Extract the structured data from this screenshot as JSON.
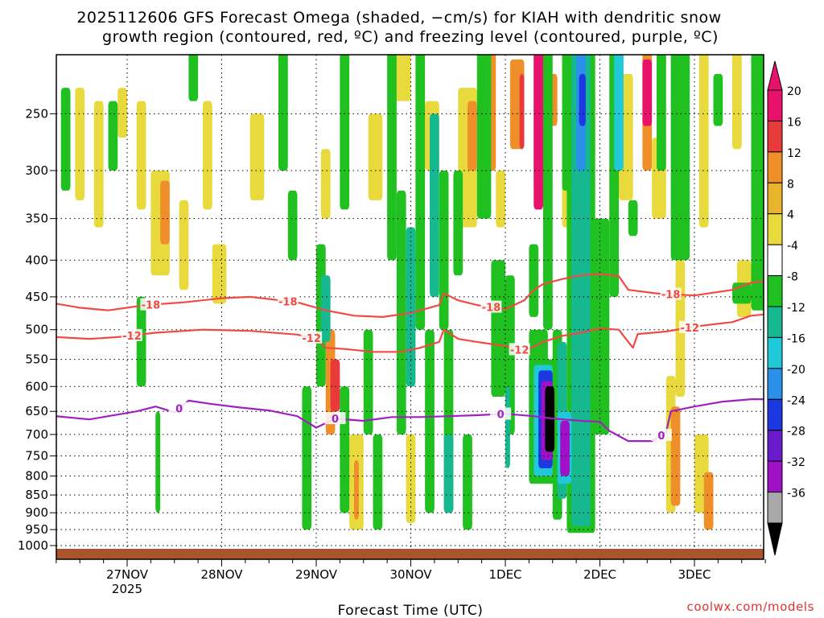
{
  "chart_data": {
    "type": "heatmap",
    "title_line1": "2025112606 GFS Forecast Omega (shaded, −cm/s) for KIAH with dendritic snow",
    "title_line2": "growth region (contoured, red, ºC) and freezing level (contoured, purple, ºC)",
    "xlabel": "Forecast Time (UTC)",
    "ylabel": "",
    "credit": "coolwx.com/models",
    "x_range_days": [
      -0.75,
      6.75
    ],
    "y_range_hpa": [
      1000,
      200
    ],
    "x_ticks": [
      {
        "day": 0,
        "label": "27NOV",
        "sublabel": "2025"
      },
      {
        "day": 1,
        "label": "28NOV",
        "sublabel": ""
      },
      {
        "day": 2,
        "label": "29NOV",
        "sublabel": ""
      },
      {
        "day": 3,
        "label": "30NOV",
        "sublabel": ""
      },
      {
        "day": 4,
        "label": "1DEC",
        "sublabel": ""
      },
      {
        "day": 5,
        "label": "2DEC",
        "sublabel": ""
      },
      {
        "day": 6,
        "label": "3DEC",
        "sublabel": ""
      }
    ],
    "y_ticks": [
      {
        "p": 250,
        "label": "250"
      },
      {
        "p": 300,
        "label": "300"
      },
      {
        "p": 350,
        "label": "350"
      },
      {
        "p": 400,
        "label": "400"
      },
      {
        "p": 450,
        "label": "450"
      },
      {
        "p": 500,
        "label": "500"
      },
      {
        "p": 550,
        "label": "550"
      },
      {
        "p": 600,
        "label": "600"
      },
      {
        "p": 650,
        "label": "650"
      },
      {
        "p": 700,
        "label": "700"
      },
      {
        "p": 750,
        "label": "750"
      },
      {
        "p": 800,
        "label": "800"
      },
      {
        "p": 850,
        "label": "850"
      },
      {
        "p": 900,
        "label": "900"
      },
      {
        "p": 950,
        "label": "950"
      },
      {
        "p": 1000,
        "label": "1000"
      }
    ],
    "colorbar": {
      "levels": [
        {
          "label": "20",
          "color": "#e8116c"
        },
        {
          "label": "16",
          "color": "#e83a3a"
        },
        {
          "label": "12",
          "color": "#ef8f2a"
        },
        {
          "label": "8",
          "color": "#e8b42e"
        },
        {
          "label": "4",
          "color": "#e8d93c"
        },
        {
          "label": "-4",
          "color": "#ffffff"
        },
        {
          "label": "-8",
          "color": "#20c020"
        },
        {
          "label": "-12",
          "color": "#16b890"
        },
        {
          "label": "-16",
          "color": "#20c8d8"
        },
        {
          "label": "-20",
          "color": "#2a90e8"
        },
        {
          "label": "-24",
          "color": "#1c38e0"
        },
        {
          "label": "-28",
          "color": "#6a1ccc"
        },
        {
          "label": "-32",
          "color": "#a010c8"
        },
        {
          "label": "-36",
          "color": "#a8a8a8"
        }
      ],
      "top_color": "#e8116c",
      "bottom_color": "#000000"
    },
    "contours": [
      {
        "name": "dgz-minus-18",
        "label": "-18",
        "color": "#f04a44",
        "label_days": [
          0.25,
          1.7,
          3.85,
          5.75
        ],
        "points": [
          [
            -0.75,
            460
          ],
          [
            -0.5,
            466
          ],
          [
            -0.2,
            470
          ],
          [
            0.2,
            462
          ],
          [
            0.6,
            458
          ],
          [
            1.0,
            452
          ],
          [
            1.3,
            450
          ],
          [
            1.8,
            458
          ],
          [
            2.1,
            470
          ],
          [
            2.4,
            478
          ],
          [
            2.7,
            480
          ],
          [
            3.0,
            474
          ],
          [
            3.3,
            462
          ],
          [
            3.35,
            445
          ],
          [
            3.5,
            455
          ],
          [
            3.7,
            462
          ],
          [
            4.0,
            468
          ],
          [
            4.2,
            455
          ],
          [
            4.3,
            440
          ],
          [
            4.4,
            432
          ],
          [
            4.6,
            425
          ],
          [
            4.8,
            420
          ],
          [
            5.0,
            418
          ],
          [
            5.2,
            421
          ],
          [
            5.3,
            440
          ],
          [
            5.6,
            445
          ],
          [
            6.0,
            448
          ],
          [
            6.4,
            440
          ],
          [
            6.6,
            430
          ],
          [
            6.75,
            428
          ]
        ]
      },
      {
        "name": "dgz-minus-12",
        "label": "-12",
        "color": "#f04a44",
        "label_days": [
          0.05,
          1.95,
          4.15,
          5.95
        ],
        "points": [
          [
            -0.75,
            512
          ],
          [
            -0.4,
            515
          ],
          [
            -0.1,
            512
          ],
          [
            0.3,
            505
          ],
          [
            0.8,
            500
          ],
          [
            1.3,
            502
          ],
          [
            1.8,
            508
          ],
          [
            2.0,
            515
          ],
          [
            2.1,
            530
          ],
          [
            2.3,
            532
          ],
          [
            2.6,
            537
          ],
          [
            2.9,
            537
          ],
          [
            3.1,
            530
          ],
          [
            3.3,
            520
          ],
          [
            3.35,
            500
          ],
          [
            3.5,
            515
          ],
          [
            3.7,
            520
          ],
          [
            4.0,
            527
          ],
          [
            4.2,
            535
          ],
          [
            4.3,
            528
          ],
          [
            4.4,
            520
          ],
          [
            4.6,
            510
          ],
          [
            4.8,
            505
          ],
          [
            5.0,
            498
          ],
          [
            5.2,
            500
          ],
          [
            5.3,
            520
          ],
          [
            5.35,
            530
          ],
          [
            5.4,
            507
          ],
          [
            5.7,
            503
          ],
          [
            6.0,
            495
          ],
          [
            6.4,
            488
          ],
          [
            6.6,
            478
          ],
          [
            6.75,
            476
          ]
        ]
      },
      {
        "name": "freezing-level",
        "label": "0",
        "color": "#a020c0",
        "label_days": [
          0.55,
          2.2,
          3.95,
          5.65
        ],
        "points": [
          [
            -0.75,
            660
          ],
          [
            -0.4,
            667
          ],
          [
            -0.2,
            660
          ],
          [
            0.1,
            650
          ],
          [
            0.3,
            640
          ],
          [
            0.5,
            652
          ],
          [
            0.65,
            628
          ],
          [
            0.9,
            635
          ],
          [
            1.2,
            642
          ],
          [
            1.5,
            648
          ],
          [
            1.8,
            660
          ],
          [
            2.0,
            685
          ],
          [
            2.2,
            665
          ],
          [
            2.5,
            670
          ],
          [
            2.8,
            662
          ],
          [
            3.1,
            662
          ],
          [
            3.4,
            660
          ],
          [
            3.7,
            658
          ],
          [
            4.0,
            655
          ],
          [
            4.3,
            660
          ],
          [
            4.5,
            665
          ],
          [
            4.8,
            670
          ],
          [
            5.0,
            672
          ],
          [
            5.1,
            692
          ],
          [
            5.3,
            715
          ],
          [
            5.55,
            715
          ],
          [
            5.7,
            695
          ],
          [
            5.75,
            650
          ],
          [
            6.0,
            640
          ],
          [
            6.3,
            630
          ],
          [
            6.6,
            625
          ],
          [
            6.75,
            625
          ]
        ]
      }
    ],
    "omega_note": "Shaded omega values in -cm/s; upward motion (positive) yellow/orange/red/magenta, downward motion (negative) green/teal/blue/purple/gray/black.",
    "omega_cells": [
      [
        -0.55,
        -0.45,
        230,
        330,
        6
      ],
      [
        -0.35,
        -0.25,
        240,
        360,
        6
      ],
      [
        -0.1,
        0.0,
        230,
        270,
        6
      ],
      [
        0.1,
        0.2,
        240,
        340,
        6
      ],
      [
        0.25,
        0.45,
        300,
        420,
        6
      ],
      [
        0.35,
        0.45,
        310,
        380,
        10
      ],
      [
        0.55,
        0.65,
        330,
        440,
        6
      ],
      [
        0.8,
        0.9,
        240,
        340,
        6
      ],
      [
        0.9,
        1.05,
        380,
        460,
        6
      ],
      [
        1.3,
        1.45,
        250,
        330,
        6
      ],
      [
        2.05,
        2.15,
        280,
        350,
        6
      ],
      [
        2.1,
        2.2,
        500,
        700,
        10
      ],
      [
        2.15,
        2.25,
        550,
        650,
        14
      ],
      [
        2.55,
        2.7,
        250,
        330,
        6
      ],
      [
        2.8,
        3.0,
        200,
        240,
        6
      ],
      [
        3.15,
        3.3,
        240,
        300,
        6
      ],
      [
        3.5,
        3.7,
        230,
        360,
        6
      ],
      [
        3.6,
        3.7,
        240,
        300,
        10
      ],
      [
        3.8,
        3.9,
        200,
        300,
        10
      ],
      [
        3.9,
        4.0,
        300,
        360,
        6
      ],
      [
        4.05,
        4.2,
        210,
        280,
        10
      ],
      [
        4.15,
        4.2,
        220,
        280,
        16
      ],
      [
        4.3,
        4.4,
        200,
        320,
        10
      ],
      [
        4.3,
        4.4,
        200,
        340,
        18
      ],
      [
        4.45,
        4.55,
        220,
        260,
        12
      ],
      [
        4.85,
        4.95,
        230,
        290,
        6
      ],
      [
        5.2,
        5.35,
        220,
        330,
        6
      ],
      [
        5.45,
        5.55,
        200,
        300,
        10
      ],
      [
        5.45,
        5.55,
        210,
        260,
        18
      ],
      [
        5.55,
        5.7,
        270,
        350,
        6
      ],
      [
        5.7,
        5.8,
        580,
        900,
        6
      ],
      [
        5.75,
        5.85,
        640,
        880,
        10
      ],
      [
        5.8,
        5.9,
        400,
        620,
        6
      ],
      [
        6.0,
        6.15,
        700,
        900,
        6
      ],
      [
        6.05,
        6.15,
        200,
        360,
        6
      ],
      [
        6.1,
        6.2,
        790,
        950,
        10
      ],
      [
        6.4,
        6.5,
        200,
        280,
        6
      ],
      [
        6.45,
        6.6,
        400,
        480,
        6
      ],
      [
        2.35,
        2.5,
        700,
        950,
        6
      ],
      [
        2.4,
        2.45,
        760,
        920,
        10
      ],
      [
        2.95,
        3.05,
        700,
        930,
        6
      ],
      [
        4.6,
        4.7,
        260,
        360,
        6
      ],
      [
        -0.7,
        -0.6,
        230,
        320,
        -6
      ],
      [
        -0.2,
        -0.1,
        240,
        300,
        -6
      ],
      [
        0.1,
        0.2,
        450,
        600,
        -6
      ],
      [
        0.3,
        0.35,
        650,
        900,
        -6
      ],
      [
        0.65,
        0.75,
        200,
        240,
        -6
      ],
      [
        1.6,
        1.7,
        200,
        300,
        -6
      ],
      [
        1.7,
        1.8,
        320,
        400,
        -6
      ],
      [
        1.85,
        1.95,
        600,
        950,
        -6
      ],
      [
        2.0,
        2.1,
        380,
        600,
        -6
      ],
      [
        2.05,
        2.15,
        420,
        520,
        -10
      ],
      [
        2.25,
        2.35,
        200,
        340,
        -6
      ],
      [
        2.25,
        2.35,
        600,
        900,
        -6
      ],
      [
        2.5,
        2.6,
        500,
        700,
        -6
      ],
      [
        2.6,
        2.7,
        700,
        950,
        -6
      ],
      [
        2.75,
        2.85,
        200,
        400,
        -6
      ],
      [
        2.85,
        2.95,
        320,
        700,
        -6
      ],
      [
        2.95,
        3.05,
        360,
        600,
        -10
      ],
      [
        3.05,
        3.15,
        200,
        500,
        -6
      ],
      [
        3.15,
        3.25,
        500,
        900,
        -6
      ],
      [
        3.2,
        3.3,
        250,
        450,
        -10
      ],
      [
        3.3,
        3.4,
        300,
        500,
        -6
      ],
      [
        3.35,
        3.45,
        500,
        900,
        -6
      ],
      [
        3.35,
        3.45,
        700,
        900,
        -10
      ],
      [
        3.45,
        3.55,
        300,
        420,
        -6
      ],
      [
        3.55,
        3.65,
        700,
        950,
        -6
      ],
      [
        3.7,
        3.85,
        200,
        350,
        -6
      ],
      [
        3.85,
        4.0,
        400,
        620,
        -6
      ],
      [
        4.0,
        4.1,
        420,
        700,
        -6
      ],
      [
        4.0,
        4.05,
        600,
        780,
        -10
      ],
      [
        4.25,
        4.35,
        380,
        480,
        -6
      ],
      [
        4.4,
        4.5,
        200,
        500,
        -6
      ],
      [
        4.5,
        4.6,
        500,
        920,
        -6
      ],
      [
        4.55,
        4.65,
        520,
        860,
        -10
      ],
      [
        4.6,
        4.7,
        200,
        320,
        -6
      ],
      [
        4.65,
        4.95,
        200,
        960,
        -6
      ],
      [
        4.7,
        4.9,
        200,
        940,
        -10
      ],
      [
        4.75,
        4.85,
        200,
        300,
        -16
      ],
      [
        4.78,
        4.85,
        220,
        260,
        -22
      ],
      [
        4.9,
        5.1,
        350,
        700,
        -6
      ],
      [
        5.1,
        5.2,
        200,
        450,
        -6
      ],
      [
        5.15,
        5.25,
        200,
        300,
        -12
      ],
      [
        5.3,
        5.4,
        330,
        370,
        -6
      ],
      [
        5.6,
        5.7,
        200,
        300,
        -6
      ],
      [
        5.75,
        5.95,
        200,
        400,
        -6
      ],
      [
        6.2,
        6.3,
        220,
        260,
        -6
      ],
      [
        6.4,
        6.6,
        430,
        460,
        -6
      ],
      [
        6.6,
        6.75,
        200,
        470,
        -6
      ],
      [
        4.25,
        4.45,
        500,
        700,
        -6
      ],
      [
        4.25,
        4.55,
        550,
        820,
        -6
      ],
      [
        4.3,
        4.5,
        560,
        800,
        -12
      ],
      [
        4.35,
        4.5,
        570,
        780,
        -22
      ],
      [
        4.38,
        4.5,
        590,
        760,
        -30
      ],
      [
        4.42,
        4.52,
        600,
        740,
        -40
      ],
      [
        4.55,
        4.7,
        650,
        820,
        -12
      ],
      [
        4.58,
        4.68,
        670,
        800,
        -28
      ]
    ]
  }
}
